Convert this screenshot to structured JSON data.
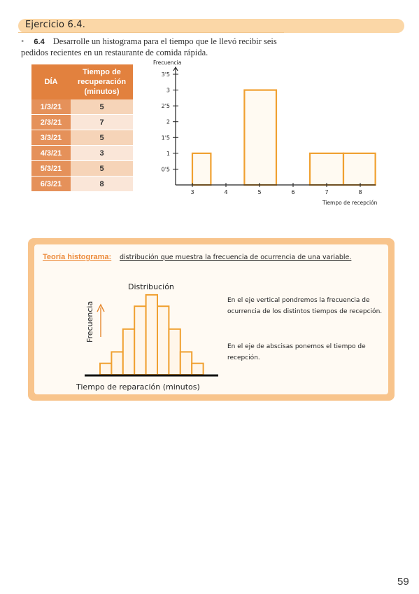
{
  "header": {
    "title": "Ejercicio 6.4."
  },
  "exercise": {
    "bullet": "•",
    "number": "6.4",
    "text": "Desarrolle un histograma para el tiempo que le llevó recibir seis pedidos recientes en un restaurante de comida rápida."
  },
  "table": {
    "headers": [
      "DÍA",
      "Tiempo de recuperación (minutos)"
    ],
    "rows": [
      {
        "day": "1/3/21",
        "value": "5"
      },
      {
        "day": "2/3/21",
        "value": "7"
      },
      {
        "day": "3/3/21",
        "value": "5"
      },
      {
        "day": "4/3/21",
        "value": "3"
      },
      {
        "day": "5/3/21",
        "value": "5"
      },
      {
        "day": "6/3/21",
        "value": "8"
      }
    ]
  },
  "chart_data": {
    "type": "bar",
    "ylabel": "Frecuencia",
    "xlabel": "Tiempo de recepción",
    "x_ticks": [
      "3",
      "4",
      "5",
      "6",
      "7",
      "8"
    ],
    "y_ticks": [
      "0'5",
      "1",
      "1'5",
      "2",
      "2'5",
      "3",
      "3'5"
    ],
    "ylim": [
      0,
      3.5
    ],
    "bars": [
      {
        "from": 3,
        "to": 3.55,
        "value": 1
      },
      {
        "from": 4.55,
        "to": 5.5,
        "value": 3
      },
      {
        "from": 6.5,
        "to": 7.5,
        "value": 1
      },
      {
        "from": 7.5,
        "to": 8.45,
        "value": 1
      }
    ],
    "colors": {
      "bar_stroke": "#f0a030",
      "bar_fill": "#fffaf2"
    }
  },
  "theory": {
    "heading": "Teoría histograma:",
    "definition": "distribución que muestra la frecuencia de ocurrencia de una variable.",
    "diagram": {
      "title": "Distribución",
      "ylabel": "Frecuencia",
      "xlabel": "Tiempo de reparación (minutos)",
      "bar_heights": [
        1,
        2,
        4,
        6,
        7,
        6,
        4,
        2,
        1
      ]
    },
    "note1": "En el eje vertical pondremos la frecuencia de ocurrencia de los distintos tiempos de recepción.",
    "note2": "En el eje de abscisas ponemos el tiempo de recepción."
  },
  "page_number": "59"
}
